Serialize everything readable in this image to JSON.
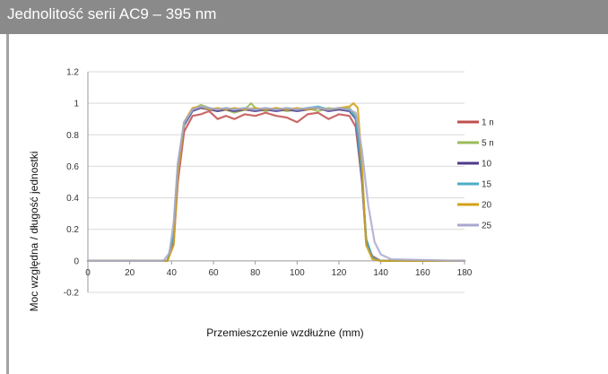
{
  "header": {
    "title": "Jednolitość serii AC9 – 395 nm"
  },
  "chart_data": {
    "type": "line",
    "title": "",
    "xlabel": "Przemieszczenie wzdłużne (mm)",
    "ylabel": "Moc względna / długość jednostki",
    "xlim": [
      0,
      180
    ],
    "ylim": [
      -0.2,
      1.2
    ],
    "x_ticks": [
      "0",
      "20",
      "40",
      "60",
      "80",
      "100",
      "120",
      "140",
      "160",
      "180"
    ],
    "y_ticks": [
      "1.2",
      "1",
      "0.8",
      "0.6",
      "0.4",
      "0.2",
      "0",
      "-0.2"
    ],
    "grid": true,
    "legend_position": "right",
    "series": [
      {
        "name": "1 mm",
        "color": "#c0504d",
        "x": [
          0,
          38,
          41,
          43,
          46,
          50,
          54,
          58,
          62,
          66,
          70,
          75,
          80,
          85,
          90,
          95,
          100,
          105,
          110,
          115,
          120,
          125,
          128,
          131,
          133,
          136,
          140,
          180
        ],
        "y": [
          0,
          0,
          0.12,
          0.5,
          0.82,
          0.92,
          0.93,
          0.95,
          0.9,
          0.92,
          0.9,
          0.93,
          0.92,
          0.94,
          0.92,
          0.91,
          0.88,
          0.93,
          0.94,
          0.9,
          0.93,
          0.92,
          0.85,
          0.5,
          0.12,
          0.03,
          0,
          0
        ]
      },
      {
        "name": "5 mm",
        "color": "#9bbb59",
        "x": [
          0,
          38,
          41,
          43,
          46,
          50,
          54,
          58,
          62,
          66,
          70,
          75,
          78,
          80,
          85,
          90,
          95,
          100,
          105,
          110,
          115,
          120,
          125,
          128,
          131,
          133,
          136,
          140,
          180
        ],
        "y": [
          0,
          0,
          0.18,
          0.6,
          0.88,
          0.96,
          0.99,
          0.97,
          0.95,
          0.96,
          0.94,
          0.96,
          1.0,
          0.97,
          0.95,
          0.97,
          0.95,
          0.96,
          0.97,
          0.95,
          0.97,
          0.96,
          0.97,
          0.92,
          0.55,
          0.14,
          0.02,
          0,
          0
        ]
      },
      {
        "name": "10 mm",
        "color": "#4f3b8c",
        "x": [
          0,
          38,
          41,
          43,
          46,
          50,
          54,
          58,
          62,
          66,
          70,
          75,
          80,
          85,
          90,
          95,
          100,
          105,
          110,
          115,
          120,
          125,
          128,
          131,
          133,
          136,
          140,
          180
        ],
        "y": [
          0,
          0,
          0.15,
          0.58,
          0.86,
          0.95,
          0.97,
          0.96,
          0.95,
          0.96,
          0.95,
          0.96,
          0.95,
          0.96,
          0.95,
          0.96,
          0.95,
          0.96,
          0.97,
          0.95,
          0.96,
          0.95,
          0.9,
          0.52,
          0.13,
          0.02,
          0,
          0
        ]
      },
      {
        "name": "15 mm",
        "color": "#4bacc6",
        "x": [
          0,
          38,
          41,
          43,
          46,
          50,
          54,
          58,
          62,
          66,
          70,
          75,
          80,
          85,
          90,
          95,
          100,
          105,
          110,
          115,
          120,
          125,
          128,
          131,
          133,
          136,
          140,
          180
        ],
        "y": [
          0,
          0,
          0.16,
          0.6,
          0.87,
          0.96,
          0.98,
          0.97,
          0.96,
          0.97,
          0.96,
          0.97,
          0.96,
          0.97,
          0.96,
          0.97,
          0.96,
          0.97,
          0.98,
          0.96,
          0.97,
          0.96,
          0.91,
          0.54,
          0.14,
          0.02,
          0,
          0
        ]
      },
      {
        "name": "20 mm",
        "color": "#d4a017",
        "x": [
          0,
          38,
          41,
          43,
          46,
          50,
          54,
          58,
          62,
          66,
          70,
          75,
          80,
          85,
          90,
          95,
          100,
          105,
          110,
          115,
          120,
          125,
          127,
          129,
          131,
          133,
          136,
          140,
          180
        ],
        "y": [
          0,
          0,
          0.1,
          0.55,
          0.88,
          0.97,
          0.98,
          0.96,
          0.97,
          0.96,
          0.97,
          0.96,
          0.97,
          0.96,
          0.97,
          0.96,
          0.97,
          0.96,
          0.97,
          0.96,
          0.97,
          0.98,
          1.0,
          0.97,
          0.6,
          0.1,
          0.01,
          0,
          0
        ]
      },
      {
        "name": "25 mm",
        "color": "#a9a9cf",
        "x": [
          0,
          36,
          39,
          41,
          43,
          46,
          50,
          54,
          58,
          62,
          66,
          70,
          75,
          80,
          85,
          90,
          95,
          100,
          105,
          110,
          115,
          120,
          125,
          128,
          131,
          134,
          137,
          140,
          145,
          180
        ],
        "y": [
          0,
          0,
          0.05,
          0.25,
          0.62,
          0.88,
          0.96,
          0.98,
          0.97,
          0.96,
          0.97,
          0.96,
          0.97,
          0.96,
          0.97,
          0.96,
          0.97,
          0.96,
          0.97,
          0.97,
          0.96,
          0.97,
          0.96,
          0.94,
          0.7,
          0.35,
          0.12,
          0.04,
          0.01,
          0
        ]
      }
    ]
  }
}
